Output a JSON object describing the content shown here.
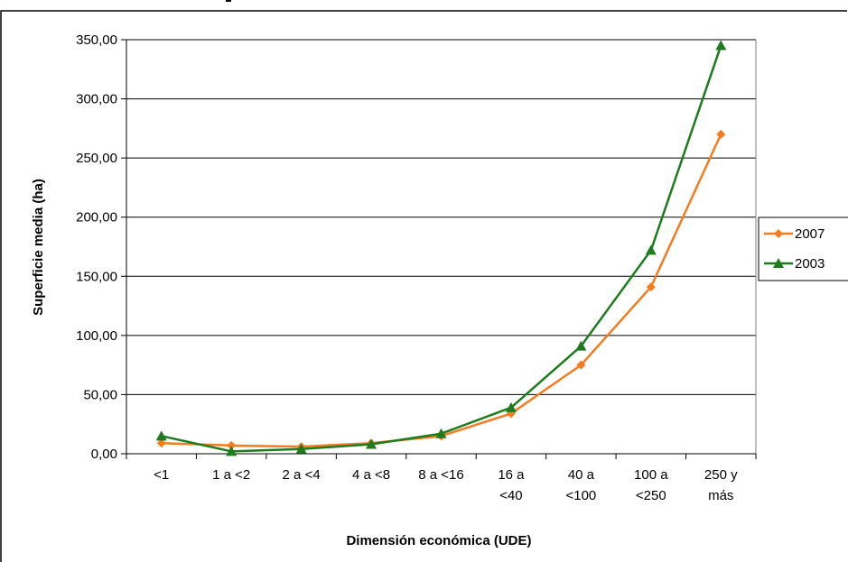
{
  "chart_data": {
    "type": "line",
    "title": "",
    "xlabel": "Dimensión económica (UDE)",
    "ylabel": "Superficie media (ha)",
    "ylim": [
      0,
      350
    ],
    "yticks": [
      "0,00",
      "50,00",
      "100,00",
      "150,00",
      "200,00",
      "250,00",
      "300,00",
      "350,00"
    ],
    "categories": [
      [
        "<1"
      ],
      [
        "1 a <2"
      ],
      [
        "2 a <4"
      ],
      [
        "4 a <8"
      ],
      [
        "8 a <16"
      ],
      [
        "16 a",
        "<40"
      ],
      [
        "40 a",
        "<100"
      ],
      [
        "100 a",
        "<250"
      ],
      [
        "250 y",
        "más"
      ]
    ],
    "grid": "horizontal",
    "legend_position": "right",
    "series": [
      {
        "name": "2007",
        "color": "#F47C20",
        "marker": "diamond",
        "values": [
          9,
          7,
          6,
          9,
          15,
          34,
          75,
          141,
          270
        ]
      },
      {
        "name": "2003",
        "color": "#1E7B1E",
        "marker": "triangle",
        "values": [
          15,
          2,
          4,
          8,
          17,
          39,
          91,
          172,
          345
        ]
      }
    ]
  }
}
